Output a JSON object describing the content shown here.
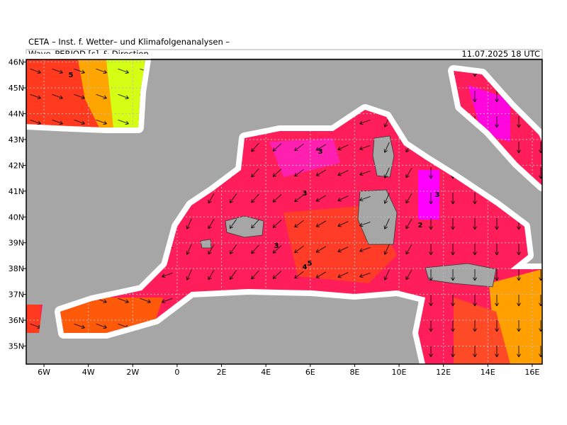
{
  "header": {
    "institute": "CETA – Inst. f. Wetter– und Klimafolgenanalysen –",
    "title": "Wave_PERIOD [s]_& Direction",
    "date": "11.07.2025 18 UTC"
  },
  "map": {
    "xlim": [
      -6.8,
      16.45
    ],
    "ylim": [
      34.3,
      46.1
    ],
    "xticks": [
      {
        "value": -6,
        "label": "6W"
      },
      {
        "value": -4,
        "label": "4W"
      },
      {
        "value": -2,
        "label": "2W"
      },
      0,
      {
        "value": 2,
        "label": "2E"
      },
      {
        "value": 4,
        "label": "4E"
      },
      {
        "value": 6,
        "label": "6E"
      },
      {
        "value": 8,
        "label": "8E"
      },
      {
        "value": 10,
        "label": "10E"
      },
      {
        "value": 12,
        "label": "12E"
      },
      {
        "value": 14,
        "label": "14E"
      },
      {
        "value": 16,
        "label": "16E"
      }
    ],
    "yticks": [
      {
        "value": 35,
        "label": "35N"
      },
      {
        "value": 36,
        "label": "36N"
      },
      {
        "value": 37,
        "label": "37N"
      },
      {
        "value": 38,
        "label": "38N"
      },
      {
        "value": 39,
        "label": "39N"
      },
      {
        "value": 40,
        "label": "40N"
      },
      {
        "value": 41,
        "label": "41N"
      },
      {
        "value": 42,
        "label": "42N"
      },
      {
        "value": 43,
        "label": "43N"
      },
      {
        "value": 44,
        "label": "44N"
      },
      {
        "value": 45,
        "label": "45N"
      },
      {
        "value": 46,
        "label": "46N"
      }
    ],
    "contour_labels": [
      "5",
      "3",
      "3",
      "3",
      "2",
      "3",
      "5",
      "4"
    ]
  }
}
